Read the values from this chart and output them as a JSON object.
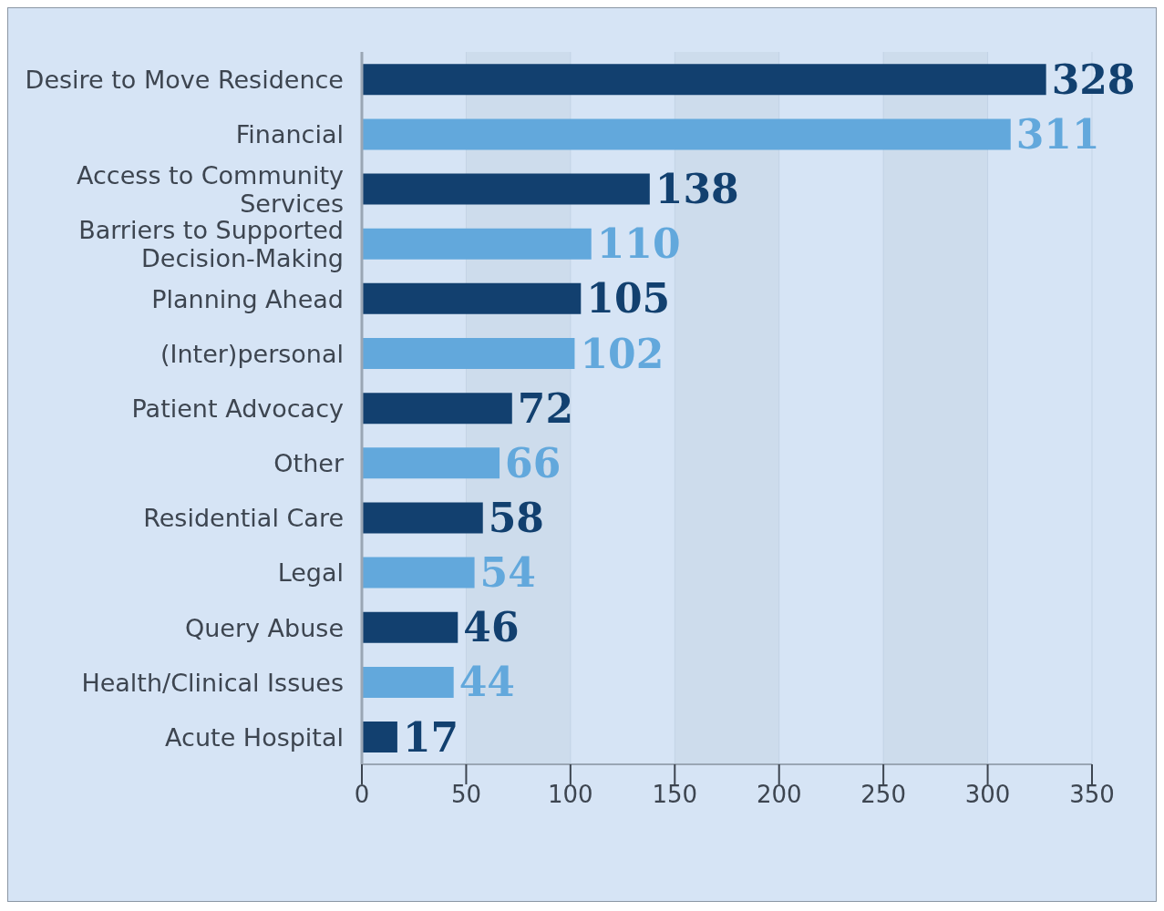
{
  "chart_data": {
    "type": "bar",
    "orientation": "horizontal",
    "categories": [
      "Desire to Move Residence",
      "Financial",
      "Access to Community Services",
      "Barriers to Supported Decision-Making",
      "Planning Ahead",
      "(Inter)personal",
      "Patient Advocacy",
      "Other",
      "Residential Care",
      "Legal",
      "Query Abuse",
      "Health/Clinical Issues",
      "Acute Hospital"
    ],
    "values": [
      328,
      311,
      138,
      110,
      105,
      102,
      72,
      66,
      58,
      54,
      46,
      44,
      17
    ],
    "colors": [
      "#12406f",
      "#62a8dc",
      "#12406f",
      "#62a8dc",
      "#12406f",
      "#62a8dc",
      "#12406f",
      "#62a8dc",
      "#12406f",
      "#62a8dc",
      "#12406f",
      "#62a8dc",
      "#12406f"
    ],
    "xlim": [
      0,
      350
    ],
    "xticks": [
      0,
      50,
      100,
      150,
      200,
      250,
      300,
      350
    ],
    "grid": "x",
    "data_labels": true
  }
}
